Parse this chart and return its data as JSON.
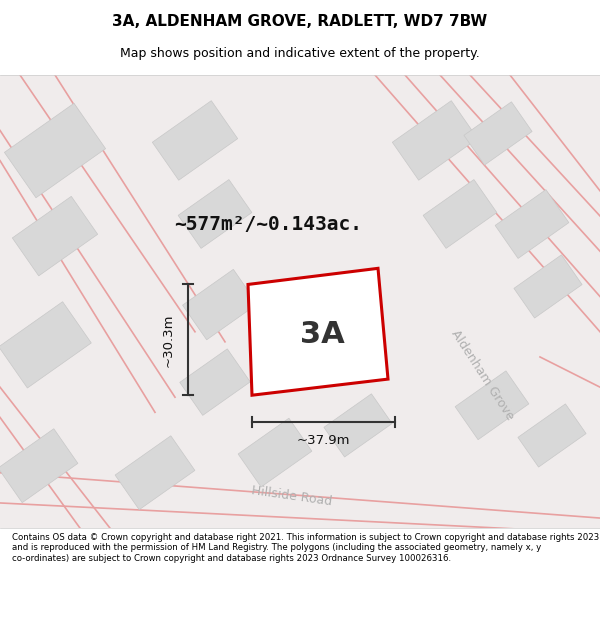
{
  "title_line1": "3A, ALDENHAM GROVE, RADLETT, WD7 7BW",
  "title_line2": "Map shows position and indicative extent of the property.",
  "area_text": "~577m²/~0.143ac.",
  "label_3A": "3A",
  "dim_height": "~30.3m",
  "dim_width": "~37.9m",
  "road_aldenham": "Aldenham Grove",
  "road_hillside": "Hillside Road",
  "footer": "Contains OS data © Crown copyright and database right 2021. This information is subject to Crown copyright and database rights 2023 and is reproduced with the permission of HM Land Registry. The polygons (including the associated geometry, namely x, y co-ordinates) are subject to Crown copyright and database rights 2023 Ordnance Survey 100026316.",
  "map_bg": "#f0ecec",
  "plot_color": "#cc0000",
  "road_line_color": "#e8a0a0",
  "dark_line": "#333333",
  "building_fill": "#d8d8d8",
  "building_edge": "#c8c8c8"
}
